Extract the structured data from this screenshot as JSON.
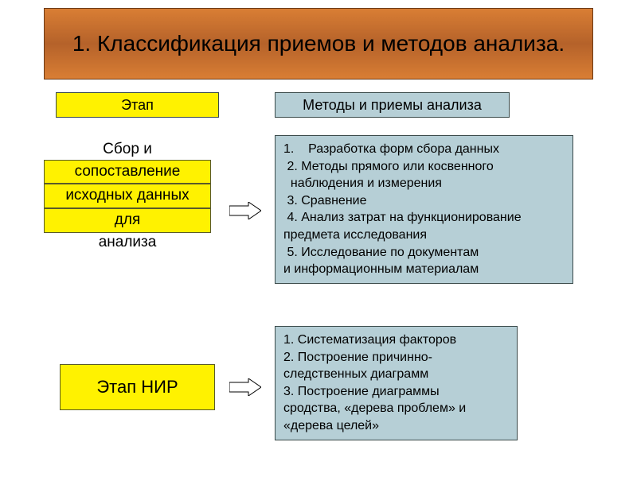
{
  "type": "flowchart",
  "background_color": "#ffffff",
  "title": {
    "text": "1. Классификация приемов и методов анализа.",
    "fontsize": 28,
    "color": "#000000",
    "bg_gradient": [
      "#d97e34",
      "#b5622a",
      "#d97e34"
    ],
    "border_color": "#6b3a16"
  },
  "headers": {
    "stage": {
      "label": "Этап",
      "bg": "#fff200",
      "border": "#5a5a2a",
      "fontsize": 18
    },
    "methods": {
      "label": "Методы и приемы анализа",
      "bg": "#b6cfd6",
      "border": "#3a4a4a",
      "fontsize": 18
    }
  },
  "stage1": {
    "pre": "Сбор и",
    "hl1": "сопоставление",
    "hl2": "исходных данных",
    "hl3": "для",
    "post": "анализа",
    "fontsize": 19,
    "hl_bg": "#fff200",
    "hl_border": "#5a5a2a"
  },
  "methods1": {
    "lines": [
      "1.    Разработка форм сбора данных",
      " 2. Методы прямого или косвенного",
      "  наблюдения и измерения",
      " 3. Сравнение",
      " 4. Анализ затрат на функционирование",
      "предмета исследования",
      " 5. Исследование по документам",
      "и информационным материалам"
    ],
    "bg": "#b6cfd6",
    "border": "#3a4a4a",
    "fontsize": 16
  },
  "stage2": {
    "label": "Этап НИР",
    "bg": "#fff200",
    "border": "#5a5a2a",
    "fontsize": 22
  },
  "methods2": {
    "lines": [
      "1. Систематизация факторов",
      "2. Построение причинно-",
      "следственных диаграмм",
      "3. Построение диаграммы",
      "сродства, «дерева проблем» и",
      "«дерева целей»"
    ],
    "bg": "#b6cfd6",
    "border": "#3a4a4a",
    "fontsize": 16
  },
  "arrow": {
    "fill": "#ffffff",
    "stroke": "#000000",
    "stroke_width": 1
  }
}
